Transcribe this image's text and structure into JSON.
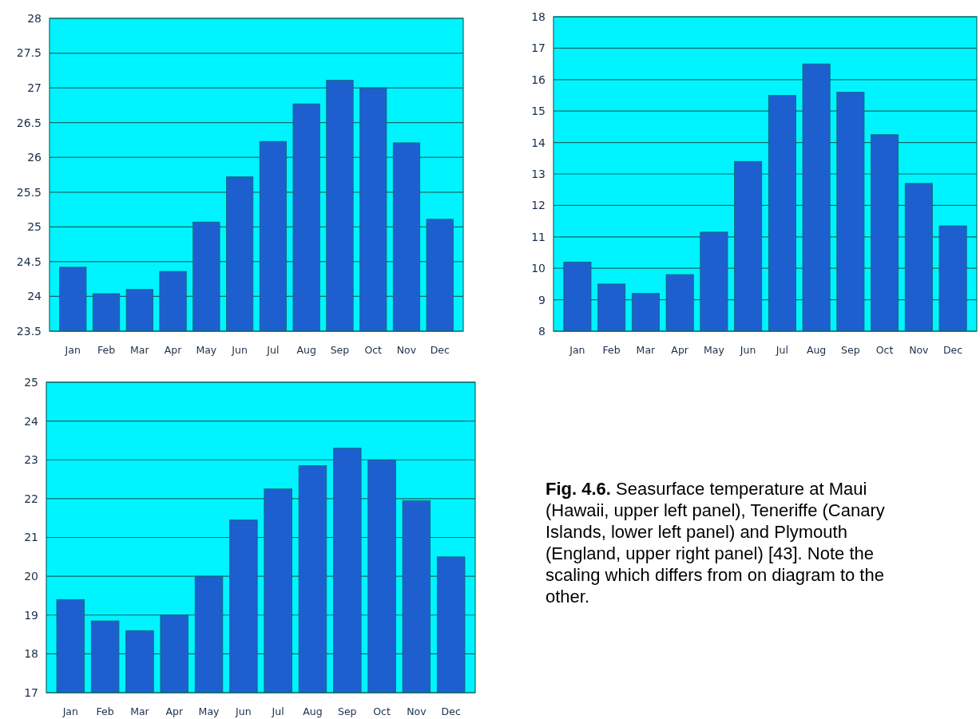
{
  "chart_data": [
    {
      "type": "bar",
      "categories": [
        "Jan",
        "Feb",
        "Mar",
        "Apr",
        "May",
        "Jun",
        "Jul",
        "Aug",
        "Sep",
        "Oct",
        "Nov",
        "Dec"
      ],
      "values": [
        24.42,
        24.04,
        24.1,
        24.36,
        25.07,
        25.72,
        26.23,
        26.77,
        27.11,
        27.0,
        26.21,
        25.11
      ],
      "color": "#1e5fd0",
      "ylim": [
        23.5,
        28
      ],
      "yticks": [
        23.5,
        24,
        24.5,
        25,
        25.5,
        26,
        26.5,
        27,
        27.5,
        28
      ],
      "grid": "y"
    },
    {
      "type": "bar",
      "categories": [
        "Jan",
        "Feb",
        "Mar",
        "Apr",
        "May",
        "Jun",
        "Jul",
        "Aug",
        "Sep",
        "Oct",
        "Nov",
        "Dec"
      ],
      "values": [
        10.2,
        9.5,
        9.2,
        9.8,
        11.15,
        13.4,
        15.5,
        16.5,
        15.6,
        14.25,
        12.7,
        11.35
      ],
      "color": "#1e5fd0",
      "ylim": [
        8,
        18
      ],
      "yticks": [
        8,
        9,
        10,
        11,
        12,
        13,
        14,
        15,
        16,
        17,
        18
      ],
      "grid": "y"
    },
    {
      "type": "bar",
      "categories": [
        "Jan",
        "Feb",
        "Mar",
        "Apr",
        "May",
        "Jun",
        "Jul",
        "Aug",
        "Sep",
        "Oct",
        "Nov",
        "Dec"
      ],
      "values": [
        19.4,
        18.85,
        18.6,
        19.0,
        20.0,
        21.45,
        22.25,
        22.85,
        23.3,
        23.0,
        21.95,
        20.5
      ],
      "color": "#1e5fd0",
      "ylim": [
        17,
        25
      ],
      "yticks": [
        17,
        18,
        19,
        20,
        21,
        22,
        23,
        24,
        25
      ],
      "grid": "y"
    },
    {
      "type": "other",
      "annotations": [
        "Fig. 4.6.",
        "Seasurface temperature at Maui (Hawaii, upper left panel), Teneriffe (Canary Islands, lower left panel) and Plymouth (England, upper right panel) [43]. Note the scaling which differs from on diagram to the other."
      ]
    }
  ]
}
